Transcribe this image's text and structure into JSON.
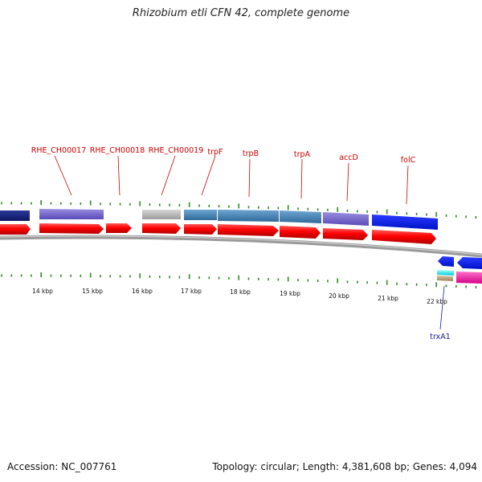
{
  "title": "Rhizobium etli CFN 42, complete genome",
  "footer": {
    "accession": "Accession: NC_007761",
    "summary": "Topology: circular; Length: 4,381,608 bp; Genes: 4,094"
  },
  "colors": {
    "label_top": "#cc0000",
    "label_bottom": "#1a1a99",
    "tick": "#2e8b1f",
    "backbone": "#8c8c8c"
  },
  "kbp_labels": [
    "14 kbp",
    "15 kbp",
    "16 kbp",
    "17 kbp",
    "18 kbp",
    "19 kbp",
    "20 kbp",
    "21 kbp",
    "22 kbp"
  ],
  "gene_labels": [
    {
      "text": "RHE_CH00017",
      "strand": "top"
    },
    {
      "text": "RHE_CH00018",
      "strand": "top"
    },
    {
      "text": "RHE_CH00019",
      "strand": "top"
    },
    {
      "text": "trpF",
      "strand": "top"
    },
    {
      "text": "trpB",
      "strand": "top"
    },
    {
      "text": "trpA",
      "strand": "top"
    },
    {
      "text": "accD",
      "strand": "top"
    },
    {
      "text": "folC",
      "strand": "top"
    },
    {
      "text": "trxA1",
      "strand": "bottom"
    }
  ]
}
